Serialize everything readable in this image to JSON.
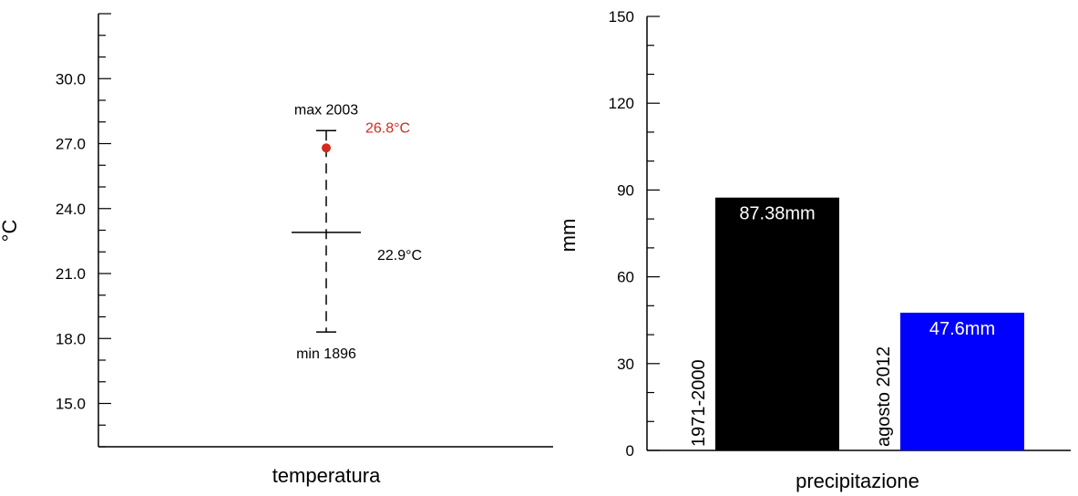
{
  "chart_data": [
    {
      "type": "scatter",
      "xlabel": "temperatura",
      "ylabel": "°C",
      "ylim": [
        13.0,
        33.0
      ],
      "yticks": [
        "15.0",
        "18.0",
        "21.0",
        "24.0",
        "27.0",
        "30.0"
      ],
      "grid": false,
      "range": {
        "max": {
          "value": 27.6,
          "label": "max 2003"
        },
        "min": {
          "value": 18.3,
          "label": "min 1896"
        },
        "mean": {
          "value": 22.9,
          "label": "22.9°C"
        }
      },
      "point": {
        "value": 26.8,
        "label": "26.8°C",
        "color": "#d42a1c"
      }
    },
    {
      "type": "bar",
      "xlabel": "precipitazione",
      "ylabel": "mm",
      "ylim": [
        0,
        150
      ],
      "yticks": [
        "0",
        "30",
        "60",
        "90",
        "120",
        "150"
      ],
      "grid": false,
      "categories": [
        "1971-2000",
        "agosto 2012"
      ],
      "values": [
        87.38,
        47.6
      ],
      "value_labels": [
        "87.38mm",
        "47.6mm"
      ],
      "colors": [
        "#000000",
        "#0000ff"
      ]
    }
  ]
}
